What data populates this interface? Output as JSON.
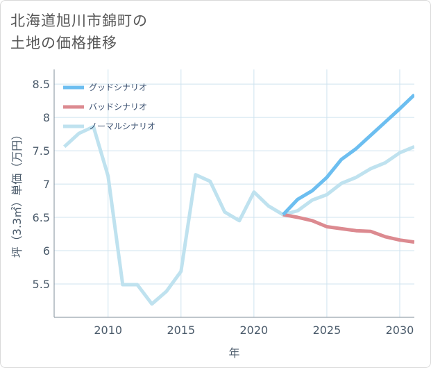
{
  "title": {
    "line1": "北海道旭川市錦町の",
    "line2": "土地の価格推移"
  },
  "chart_data": {
    "type": "line",
    "xlabel": "年",
    "ylabel": "坪（3.3㎡）単価（万円）",
    "xlim": [
      2006.3,
      2031
    ],
    "ylim": [
      5.0,
      8.72
    ],
    "xticks": [
      "2010",
      "2015",
      "2020",
      "2025",
      "2030"
    ],
    "yticks": [
      "5.5",
      "6",
      "6.5",
      "7",
      "7.5",
      "8",
      "8.5"
    ],
    "grid": true,
    "legend_position": "top-left",
    "series": [
      {
        "name": "グッドシナリオ",
        "color": "#6cbef0",
        "x": [
          2022,
          2023,
          2024,
          2025,
          2026,
          2027,
          2028,
          2029,
          2030,
          2031
        ],
        "values": [
          6.54,
          6.77,
          6.9,
          7.1,
          7.37,
          7.53,
          7.73,
          7.93,
          8.13,
          8.34
        ]
      },
      {
        "name": "バッドシナリオ",
        "color": "#dc8a90",
        "x": [
          2022,
          2023,
          2024,
          2025,
          2026,
          2027,
          2028,
          2029,
          2030,
          2031
        ],
        "values": [
          6.54,
          6.5,
          6.45,
          6.36,
          6.33,
          6.3,
          6.29,
          6.21,
          6.16,
          6.13
        ]
      },
      {
        "name": "ノーマルシナリオ",
        "color": "#bfe2ef",
        "x": [
          2007,
          2008,
          2009,
          2010,
          2011,
          2012,
          2013,
          2014,
          2015,
          2016,
          2017,
          2018,
          2019,
          2020,
          2021,
          2022,
          2023,
          2024,
          2025,
          2026,
          2027,
          2028,
          2029,
          2030,
          2031
        ],
        "values": [
          7.56,
          7.76,
          7.86,
          7.12,
          5.49,
          5.49,
          5.2,
          5.39,
          5.69,
          7.14,
          7.04,
          6.58,
          6.45,
          6.88,
          6.67,
          6.54,
          6.6,
          6.76,
          6.84,
          7.01,
          7.1,
          7.23,
          7.32,
          7.47,
          7.56
        ]
      }
    ]
  }
}
